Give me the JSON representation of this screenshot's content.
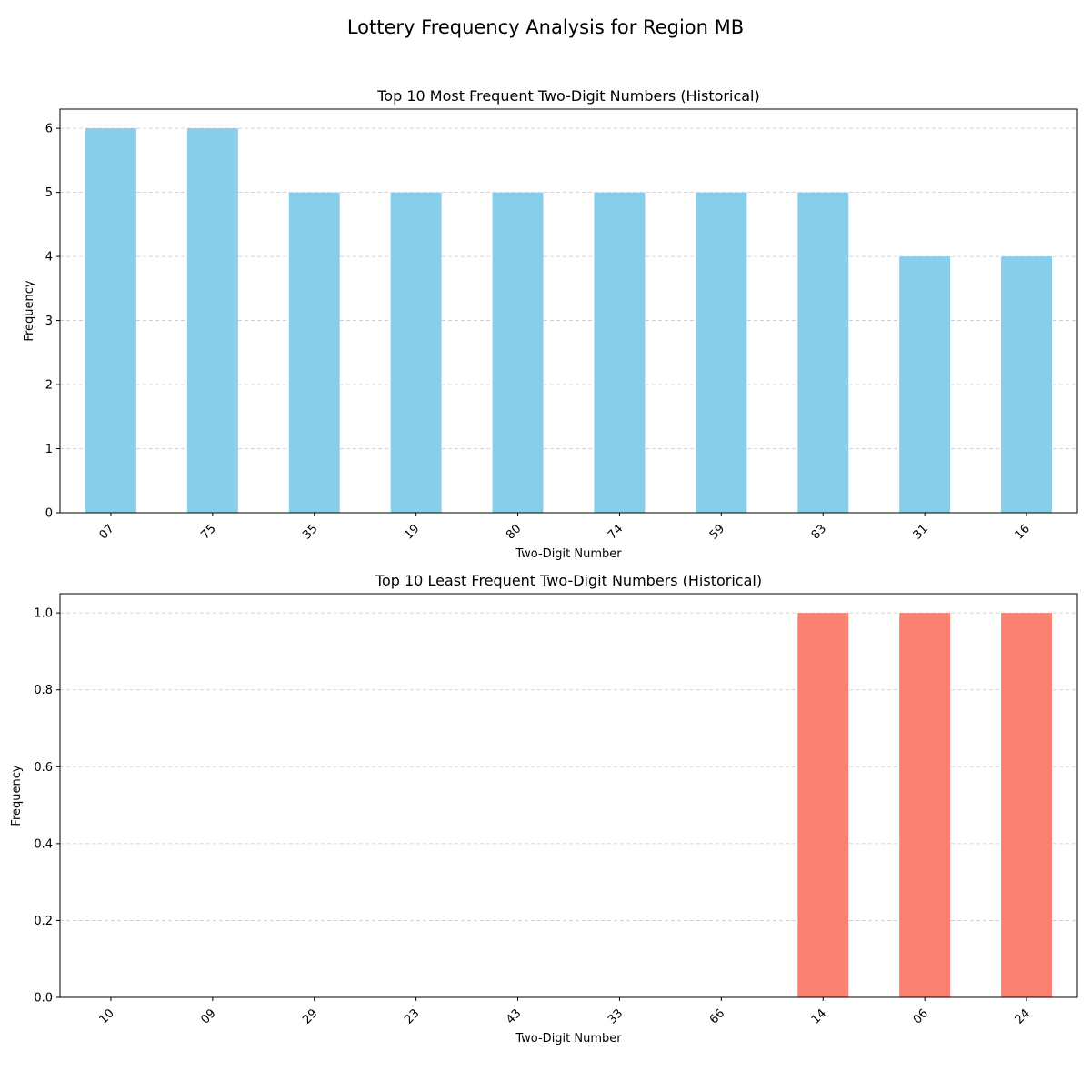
{
  "figure": {
    "title": "Lottery Frequency Analysis for Region MB"
  },
  "chart_data": [
    {
      "type": "bar",
      "title": "Top 10 Most Frequent Two-Digit Numbers (Historical)",
      "xlabel": "Two-Digit Number",
      "ylabel": "Frequency",
      "categories": [
        "07",
        "75",
        "35",
        "19",
        "80",
        "74",
        "59",
        "83",
        "31",
        "16"
      ],
      "values": [
        6,
        6,
        5,
        5,
        5,
        5,
        5,
        5,
        4,
        4
      ],
      "ylim": [
        0,
        6.3
      ],
      "yticks": [
        "0",
        "1",
        "2",
        "3",
        "4",
        "5",
        "6"
      ],
      "ytick_values": [
        0,
        1,
        2,
        3,
        4,
        5,
        6
      ],
      "color": "#87ceeb",
      "grid": "y, dashed"
    },
    {
      "type": "bar",
      "title": "Top 10 Least Frequent Two-Digit Numbers (Historical)",
      "xlabel": "Two-Digit Number",
      "ylabel": "Frequency",
      "categories": [
        "10",
        "09",
        "29",
        "23",
        "43",
        "33",
        "66",
        "14",
        "06",
        "24"
      ],
      "values": [
        0,
        0,
        0,
        0,
        0,
        0,
        0,
        1,
        1,
        1
      ],
      "ylim": [
        0,
        1.05
      ],
      "yticks": [
        "0.0",
        "0.2",
        "0.4",
        "0.6",
        "0.8",
        "1.0"
      ],
      "ytick_values": [
        0,
        0.2,
        0.4,
        0.6,
        0.8,
        1.0
      ],
      "color": "#fa8072",
      "grid": "y, dashed"
    }
  ]
}
